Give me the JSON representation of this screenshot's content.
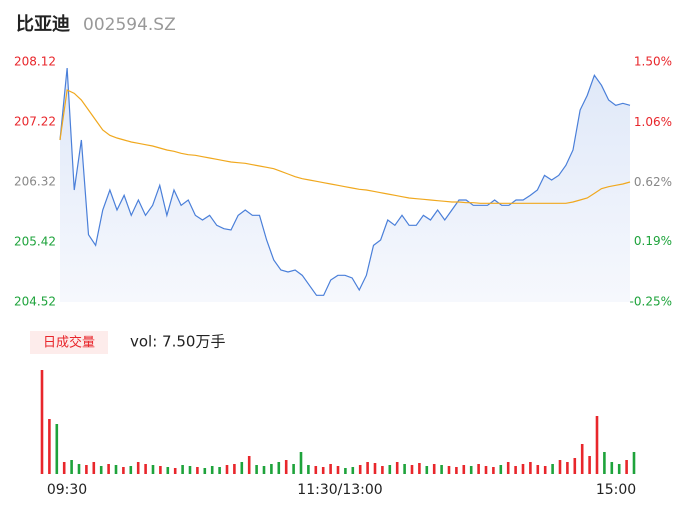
{
  "chart_data": {
    "type": "intraday",
    "title": "比亚迪",
    "subtitle": "002594.SZ",
    "time_labels": [
      "09:30",
      "11:30/13:00",
      "15:00"
    ],
    "ylim": [
      204.52,
      208.12
    ],
    "yticks": [
      208.12,
      207.22,
      206.32,
      205.42,
      204.52
    ],
    "y2lim": [
      -0.25,
      1.5
    ],
    "y2ticks": [
      {
        "value": 1.5,
        "label": "1.50%"
      },
      {
        "value": 1.06,
        "label": "1.06%"
      },
      {
        "value": 0.62,
        "label": "0.62%"
      },
      {
        "value": 0.19,
        "label": "0.19%"
      },
      {
        "value": -0.25,
        "label": "-0.25%"
      }
    ],
    "series": [
      {
        "name": "price",
        "color": "#4a7fd9",
        "values": [
          206.95,
          208.03,
          206.2,
          206.95,
          205.53,
          205.37,
          205.9,
          206.2,
          205.9,
          206.12,
          205.82,
          206.05,
          205.82,
          205.97,
          206.27,
          205.82,
          206.2,
          205.97,
          206.05,
          205.82,
          205.75,
          205.82,
          205.67,
          205.62,
          205.6,
          205.82,
          205.9,
          205.82,
          205.82,
          205.45,
          205.15,
          205.0,
          204.97,
          205.0,
          204.92,
          204.77,
          204.62,
          204.62,
          204.85,
          204.92,
          204.92,
          204.88,
          204.7,
          204.92,
          205.37,
          205.45,
          205.75,
          205.67,
          205.82,
          205.67,
          205.67,
          205.82,
          205.75,
          205.9,
          205.75,
          205.9,
          206.05,
          206.05,
          205.97,
          205.97,
          205.97,
          206.05,
          205.97,
          205.97,
          206.05,
          206.05,
          206.12,
          206.2,
          206.42,
          206.35,
          206.42,
          206.57,
          206.8,
          207.4,
          207.62,
          207.92,
          207.77,
          207.55,
          207.47,
          207.5,
          207.47
        ]
      },
      {
        "name": "average",
        "color": "#f0a81e",
        "values": [
          206.95,
          207.7,
          207.65,
          207.55,
          207.4,
          207.25,
          207.1,
          207.02,
          206.98,
          206.95,
          206.92,
          206.9,
          206.88,
          206.86,
          206.83,
          206.8,
          206.78,
          206.75,
          206.73,
          206.72,
          206.7,
          206.68,
          206.66,
          206.64,
          206.62,
          206.61,
          206.6,
          206.58,
          206.56,
          206.54,
          206.52,
          206.48,
          206.44,
          206.4,
          206.37,
          206.35,
          206.33,
          206.31,
          206.29,
          206.27,
          206.25,
          206.23,
          206.21,
          206.2,
          206.18,
          206.16,
          206.14,
          206.12,
          206.1,
          206.08,
          206.07,
          206.06,
          206.05,
          206.04,
          206.03,
          206.02,
          206.02,
          206.01,
          206.01,
          206.0,
          206.0,
          206.0,
          206.0,
          206.0,
          206.0,
          206.0,
          206.0,
          206.0,
          206.0,
          206.0,
          206.0,
          206.0,
          206.02,
          206.05,
          206.08,
          206.15,
          206.22,
          206.25,
          206.27,
          206.29,
          206.32
        ]
      }
    ],
    "volume_label": "日成交量",
    "volume_text": "vol: 7.50万手",
    "up_color": "#e8262b",
    "down_color": "#1ea33b",
    "volume": [
      104,
      55,
      50,
      12,
      14,
      10,
      9,
      12,
      8,
      10,
      9,
      7,
      8,
      12,
      10,
      9,
      8,
      7,
      6,
      9,
      8,
      7,
      6,
      8,
      7,
      9,
      10,
      12,
      18,
      9,
      8,
      10,
      12,
      14,
      10,
      22,
      9,
      8,
      7,
      10,
      8,
      6,
      7,
      9,
      12,
      11,
      8,
      9,
      12,
      10,
      9,
      11,
      8,
      10,
      9,
      8,
      7,
      9,
      8,
      10,
      8,
      7,
      9,
      12,
      8,
      10,
      12,
      9,
      8,
      10,
      14,
      12,
      16,
      30,
      18,
      58,
      22,
      12,
      10,
      14,
      22
    ]
  }
}
